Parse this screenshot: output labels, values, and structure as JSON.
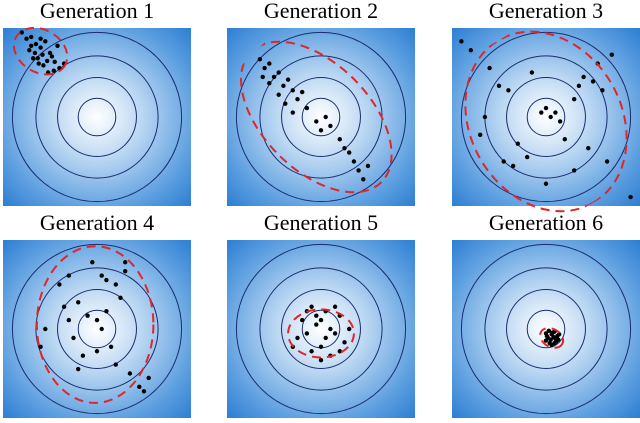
{
  "chart_data": [
    {
      "type": "scatter",
      "title": "Generation 1",
      "xlim": [
        -1,
        1
      ],
      "ylim": [
        -1,
        1
      ],
      "color": "#000000",
      "x": [
        -0.8,
        -0.75,
        -0.7,
        -0.72,
        -0.65,
        -0.6,
        -0.58,
        -0.55,
        -0.5,
        -0.62,
        -0.68,
        -0.45,
        -0.4,
        -0.52,
        -0.48,
        -0.57,
        -0.66,
        -0.35,
        -0.42,
        -0.6,
        -0.53,
        -0.7,
        -0.46,
        -0.63
      ],
      "y": [
        0.95,
        0.88,
        0.9,
        0.75,
        0.82,
        0.78,
        0.7,
        0.85,
        0.72,
        0.6,
        0.66,
        0.62,
        0.55,
        0.5,
        0.68,
        0.58,
        0.72,
        0.6,
        0.8,
        0.88,
        0.63,
        0.8,
        0.52,
        0.66
      ],
      "ellipse": {
        "cx": -0.6,
        "cy": 0.74,
        "rx": 0.3,
        "ry": 0.24,
        "angle": -30,
        "color": "#e0262a"
      }
    },
    {
      "type": "scatter",
      "title": "Generation 2",
      "xlim": [
        -1,
        1
      ],
      "ylim": [
        -1,
        1
      ],
      "color": "#000000",
      "x": [
        -0.65,
        -0.6,
        -0.55,
        -0.5,
        -0.45,
        -0.55,
        -0.4,
        -0.35,
        -0.45,
        -0.3,
        -0.25,
        -0.38,
        -0.2,
        -0.15,
        -0.3,
        -0.05,
        0.05,
        0.0,
        0.1,
        0.2,
        0.3,
        0.35,
        0.25,
        0.4,
        0.45,
        0.5,
        -0.62
      ],
      "y": [
        0.65,
        0.55,
        0.6,
        0.45,
        0.5,
        0.38,
        0.35,
        0.42,
        0.25,
        0.3,
        0.2,
        0.15,
        0.28,
        0.1,
        0.05,
        -0.05,
        0.0,
        -0.15,
        -0.1,
        -0.25,
        -0.4,
        -0.5,
        -0.35,
        -0.6,
        -0.7,
        -0.55,
        0.45
      ],
      "ellipse": {
        "cx": -0.05,
        "cy": 0.0,
        "rx": 0.98,
        "ry": 0.6,
        "angle": -45,
        "color": "#e0262a"
      }
    },
    {
      "type": "scatter",
      "title": "Generation 3",
      "xlim": [
        -1,
        1
      ],
      "ylim": [
        -1,
        1
      ],
      "color": "#000000",
      "x": [
        -0.9,
        -0.8,
        -0.6,
        -0.4,
        -0.5,
        -0.65,
        -0.3,
        -0.7,
        -0.2,
        0.0,
        0.05,
        0.1,
        0.15,
        -0.05,
        0.3,
        0.35,
        0.4,
        0.5,
        0.55,
        0.6,
        0.45,
        0.2,
        -0.45,
        -0.35,
        0.0,
        0.3,
        0.65,
        0.9,
        -0.15,
        0.7
      ],
      "y": [
        0.85,
        0.75,
        0.55,
        0.3,
        0.35,
        0.0,
        -0.3,
        -0.2,
        -0.45,
        0.1,
        0.0,
        0.05,
        -0.05,
        0.05,
        0.2,
        0.35,
        0.45,
        0.4,
        0.6,
        0.3,
        -0.35,
        -0.25,
        -0.5,
        -0.55,
        -0.75,
        -0.6,
        -0.5,
        -0.9,
        0.5,
        0.7
      ],
      "ellipse": {
        "cx": 0.0,
        "cy": -0.05,
        "rx": 1.0,
        "ry": 0.85,
        "angle": -60,
        "color": "#e0262a"
      }
    },
    {
      "type": "scatter",
      "title": "Generation 4",
      "xlim": [
        -1,
        1
      ],
      "ylim": [
        -1,
        1
      ],
      "color": "#000000",
      "x": [
        -0.6,
        -0.55,
        -0.4,
        -0.3,
        -0.2,
        -0.1,
        0.0,
        0.1,
        0.2,
        0.3,
        -0.25,
        -0.15,
        0.05,
        0.15,
        0.25,
        -0.35,
        -0.05,
        0.1,
        -0.2,
        0.0,
        0.2,
        0.35,
        0.45,
        0.5,
        0.55,
        0.3,
        -0.3,
        0.05
      ],
      "y": [
        -0.2,
        0.0,
        0.5,
        0.6,
        0.3,
        0.15,
        0.1,
        0.2,
        0.5,
        0.65,
        -0.1,
        -0.3,
        0.0,
        -0.2,
        0.35,
        0.25,
        0.75,
        0.55,
        -0.45,
        -0.25,
        -0.4,
        -0.5,
        -0.65,
        -0.7,
        -0.55,
        0.75,
        0.1,
        0.6
      ],
      "ellipse": {
        "cx": -0.02,
        "cy": 0.05,
        "rx": 0.62,
        "ry": 0.88,
        "angle": 0,
        "color": "#e0262a"
      }
    },
    {
      "type": "scatter",
      "title": "Generation 5",
      "xlim": [
        -1,
        1
      ],
      "ylim": [
        -1,
        1
      ],
      "color": "#000000",
      "x": [
        -0.1,
        -0.05,
        0.0,
        0.05,
        0.1,
        0.15,
        0.2,
        -0.15,
        -0.2,
        0.25,
        -0.25,
        0.0,
        0.1,
        -0.1,
        0.05,
        0.3,
        -0.3,
        0.15,
        -0.05,
        0.2,
        0.0,
        -0.15
      ],
      "y": [
        0.25,
        0.15,
        0.1,
        0.2,
        0.0,
        -0.05,
        0.15,
        -0.05,
        0.1,
        -0.15,
        -0.1,
        -0.2,
        -0.3,
        -0.25,
        -0.1,
        0.0,
        -0.2,
        0.25,
        0.05,
        -0.25,
        -0.35,
        0.2
      ],
      "ellipse": {
        "cx": 0.0,
        "cy": -0.05,
        "rx": 0.35,
        "ry": 0.27,
        "angle": 0,
        "color": "#e0262a"
      }
    },
    {
      "type": "scatter",
      "title": "Generation 6",
      "xlim": [
        -1,
        1
      ],
      "ylim": [
        -1,
        1
      ],
      "color": "#000000",
      "x": [
        0.0,
        0.03,
        0.06,
        0.09,
        0.12,
        0.02,
        0.05,
        0.08,
        0.11,
        0.0,
        0.04,
        0.07,
        0.1,
        0.14,
        0.06,
        0.01,
        0.09,
        0.13
      ],
      "y": [
        -0.05,
        -0.02,
        -0.06,
        -0.03,
        -0.08,
        -0.1,
        -0.12,
        -0.09,
        -0.14,
        -0.13,
        -0.16,
        -0.04,
        -0.11,
        -0.06,
        -0.18,
        -0.08,
        -0.16,
        -0.12
      ],
      "ellipse": {
        "cx": 0.06,
        "cy": -0.1,
        "rx": 0.13,
        "ry": 0.1,
        "angle": -30,
        "color": "#e0262a"
      }
    }
  ]
}
